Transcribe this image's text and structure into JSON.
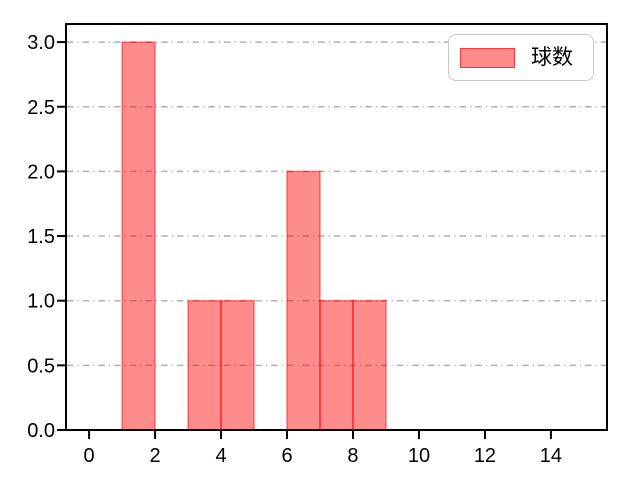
{
  "chart_data": {
    "type": "bar",
    "title": "",
    "xlabel": "",
    "ylabel": "",
    "legend": [
      {
        "label": "球数"
      }
    ],
    "legend_position": "upper right",
    "bars": [
      {
        "x0": 1,
        "x1": 2,
        "value": 3
      },
      {
        "x0": 3,
        "x1": 4,
        "value": 1
      },
      {
        "x0": 4,
        "x1": 5,
        "value": 1
      },
      {
        "x0": 6,
        "x1": 7,
        "value": 2
      },
      {
        "x0": 7,
        "x1": 8,
        "value": 1
      },
      {
        "x0": 8,
        "x1": 9,
        "value": 1
      }
    ],
    "xtick_values": [
      0,
      2,
      4,
      6,
      8,
      10,
      12,
      14
    ],
    "xtick_labels": [
      "0",
      "2",
      "4",
      "6",
      "8",
      "10",
      "12",
      "14"
    ],
    "ytick_values": [
      0,
      0.5,
      1,
      1.5,
      2,
      2.5,
      3
    ],
    "ytick_labels": [
      "0.0",
      "0.5",
      "1.0",
      "1.5",
      "2.0",
      "2.5",
      "3.0"
    ],
    "xlim": [
      -0.7,
      15.7
    ],
    "ylim": [
      0,
      3.14
    ],
    "grid": {
      "axis": "y",
      "style": "dash-dot",
      "on": true
    },
    "colors": {
      "bar_color": "#ff0000",
      "bar_fill_alpha": 0.45,
      "bar_edge_alpha": 0.45,
      "grid": "#b0b0b0",
      "frame": "#000000",
      "tick_text": "#000000",
      "legend_border": "#c9c9c9",
      "background": "#ffffff"
    }
  }
}
